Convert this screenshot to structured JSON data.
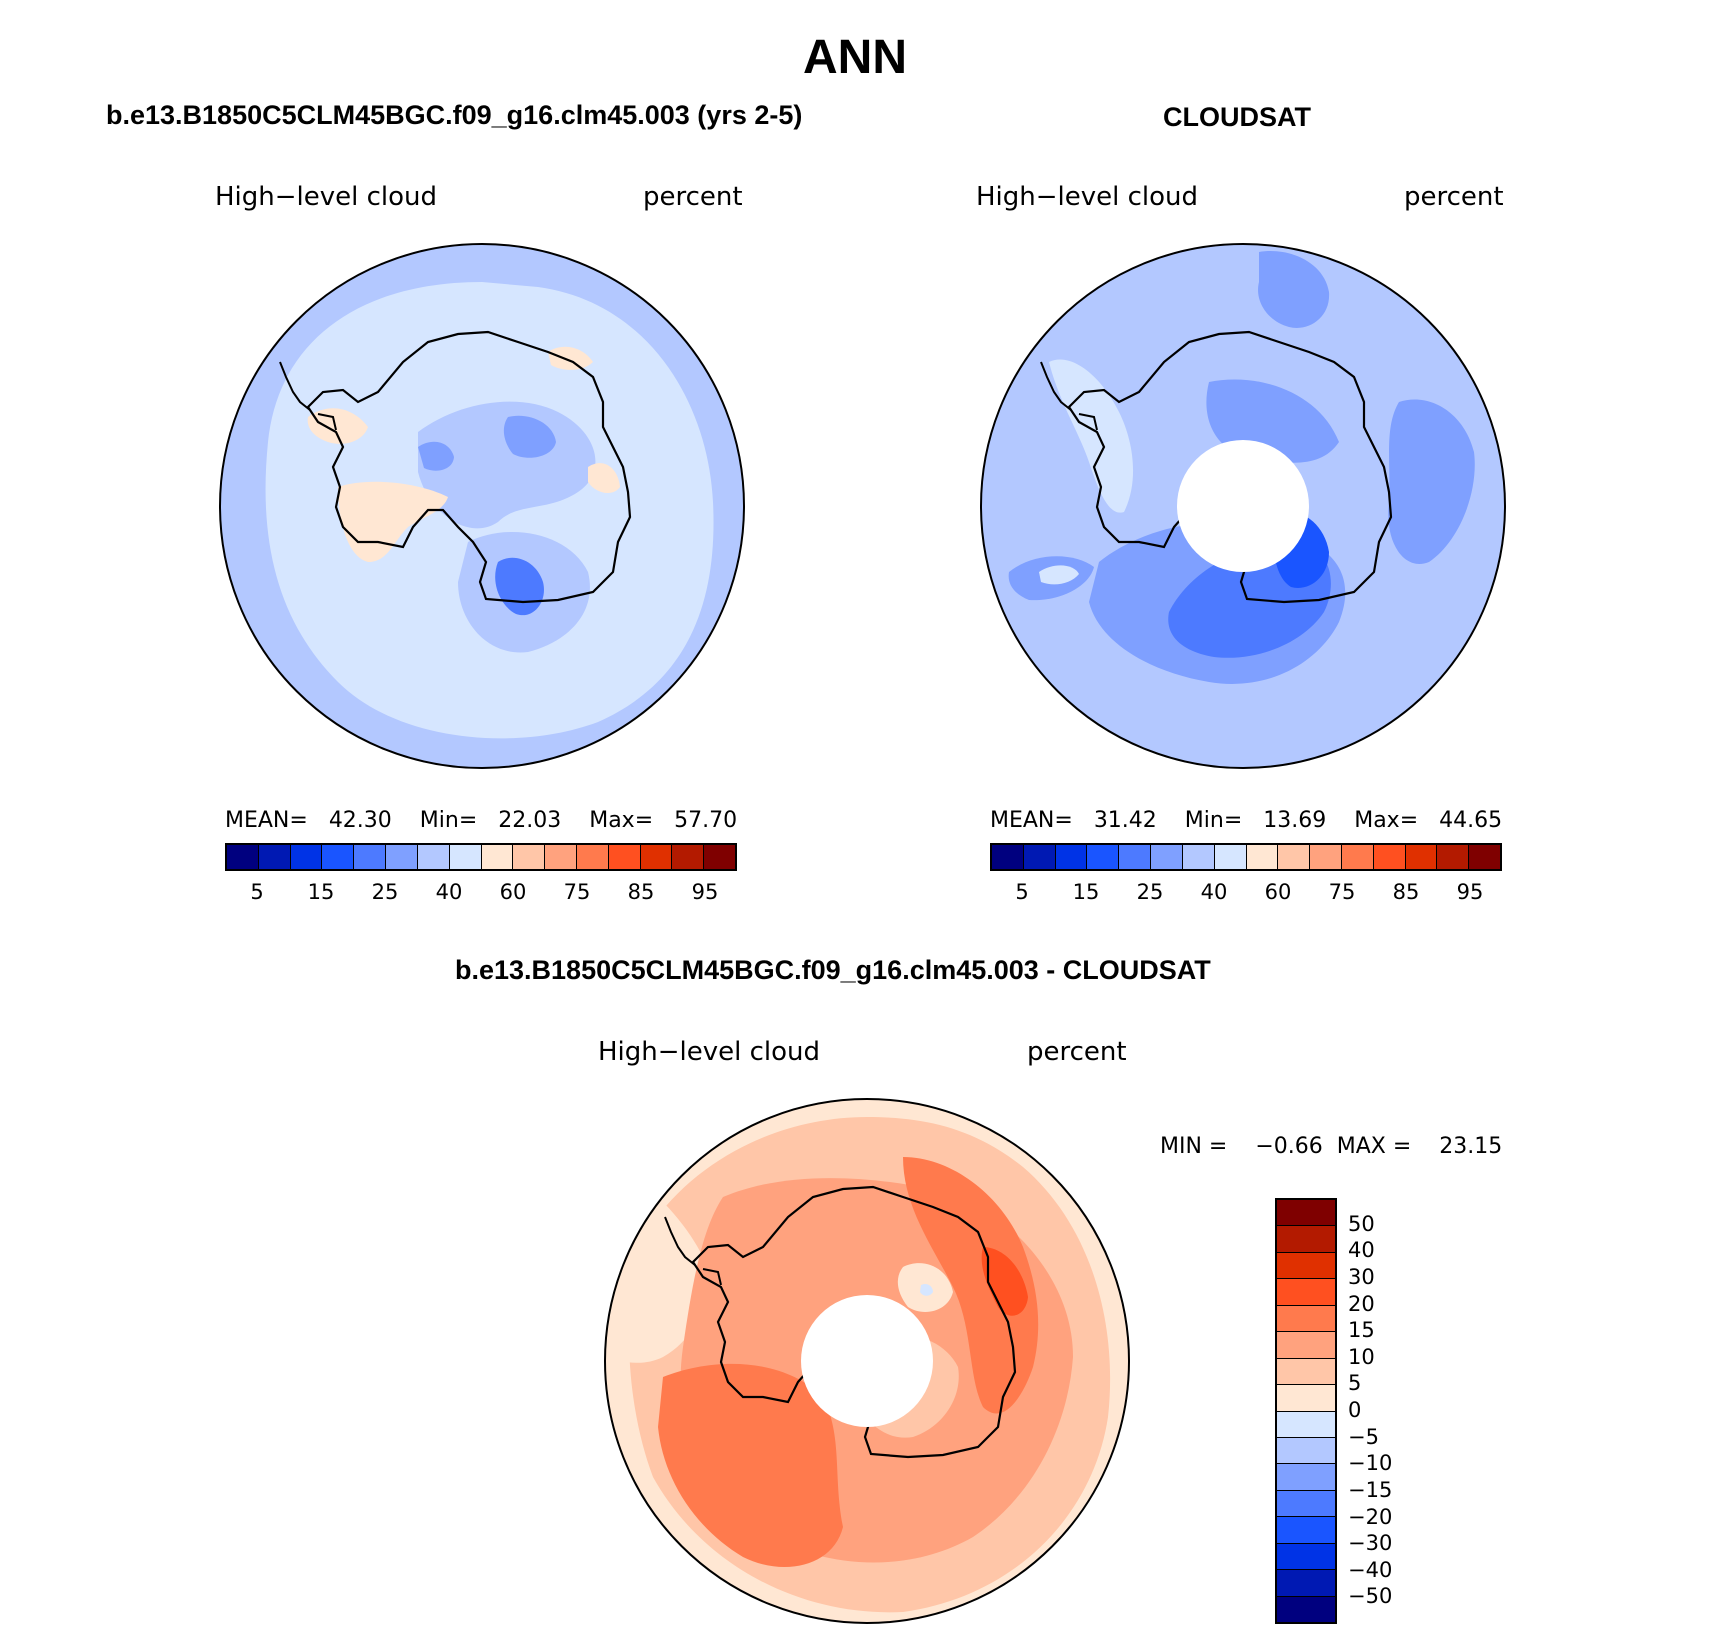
{
  "page": {
    "title": "ANN",
    "panels": [
      {
        "title": "b.e13.B1850C5CLM45BGC.f09_g16.clm45.003 (yrs 2-5)",
        "variable": "High−level cloud",
        "units": "percent",
        "stats": {
          "mean_label": "MEAN=",
          "mean": "42.30",
          "min_label": "Min=",
          "min": "22.03",
          "max_label": "Max=",
          "max": "57.70"
        }
      },
      {
        "title": "CLOUDSAT",
        "variable": "High−level cloud",
        "units": "percent",
        "stats": {
          "mean_label": "MEAN=",
          "mean": "31.42",
          "min_label": "Min=",
          "min": "13.69",
          "max_label": "Max=",
          "max": "44.65"
        }
      },
      {
        "title": "b.e13.B1850C5CLM45BGC.f09_g16.clm45.003 - CLOUDSAT",
        "variable": "High−level cloud",
        "units": "percent",
        "stats": {
          "min_label": "MIN =",
          "min": "−0.66",
          "max_label": "MAX =",
          "max": "23.15"
        }
      }
    ]
  },
  "colorbar_abs": {
    "colors": [
      "#00007f",
      "#0019b3",
      "#0033e6",
      "#1a55ff",
      "#4d7aff",
      "#7fa0ff",
      "#b3c8ff",
      "#d6e6ff",
      "#ffe7d3",
      "#ffc6a8",
      "#ffa27e",
      "#ff7a4d",
      "#ff5020",
      "#e03000",
      "#b31a00",
      "#7f0000"
    ],
    "tick_labels": [
      "5",
      "15",
      "25",
      "40",
      "60",
      "75",
      "85",
      "95"
    ]
  },
  "colorbar_diff": {
    "colors": [
      "#7f0000",
      "#b31a00",
      "#e03000",
      "#ff5020",
      "#ff7a4d",
      "#ffa27e",
      "#ffc6a8",
      "#ffe7d3",
      "#d6e6ff",
      "#b3c8ff",
      "#7fa0ff",
      "#4d7aff",
      "#1a55ff",
      "#0033e6",
      "#0019b3",
      "#00007f"
    ],
    "tick_labels": [
      "50",
      "40",
      "30",
      "20",
      "15",
      "10",
      "5",
      "0",
      "−5",
      "−10",
      "−15",
      "−20",
      "−30",
      "−40",
      "−50"
    ]
  },
  "map_colors": {
    "model_bg": "#d6e6ff",
    "model_mid": "#b3c8ff",
    "model_dark": "#7fa0ff",
    "model_darker": "#4d7aff",
    "model_warm": "#ffe7d3",
    "obs_bg": "#b3c8ff",
    "obs_mid": "#7fa0ff",
    "obs_dark": "#4d7aff",
    "obs_darker": "#1a55ff",
    "obs_light": "#d6e6ff",
    "diff_bg": "#ffc6a8",
    "diff_light": "#ffe7d3",
    "diff_mid": "#ffa27e",
    "diff_strong": "#ff7a4d",
    "diff_hot": "#ff5020",
    "diff_neg": "#d6e6ff",
    "coast": "#000000",
    "hole": "#ffffff"
  }
}
